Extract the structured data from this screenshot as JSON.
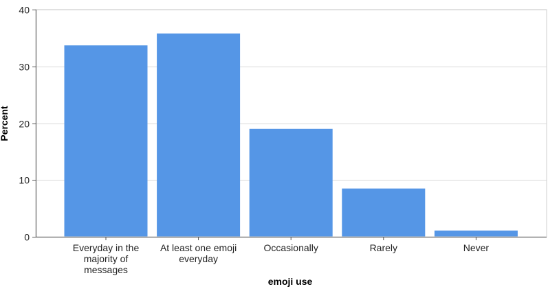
{
  "chart_data": {
    "type": "bar",
    "title": "",
    "xlabel": "emoji use",
    "ylabel": "Percent",
    "categories": [
      [
        "Everyday in the",
        "majority of",
        "messages"
      ],
      [
        "At least one emoji",
        "everyday"
      ],
      [
        "Occasionally"
      ],
      [
        "Rarely"
      ],
      [
        "Never"
      ]
    ],
    "values": [
      33.7,
      35.8,
      19.0,
      8.5,
      1.1
    ],
    "ylim": [
      0,
      40
    ],
    "yticks": [
      0,
      10,
      20,
      30,
      40
    ],
    "bar_color": "#5596e6",
    "gridlines": true,
    "legend": "none"
  }
}
